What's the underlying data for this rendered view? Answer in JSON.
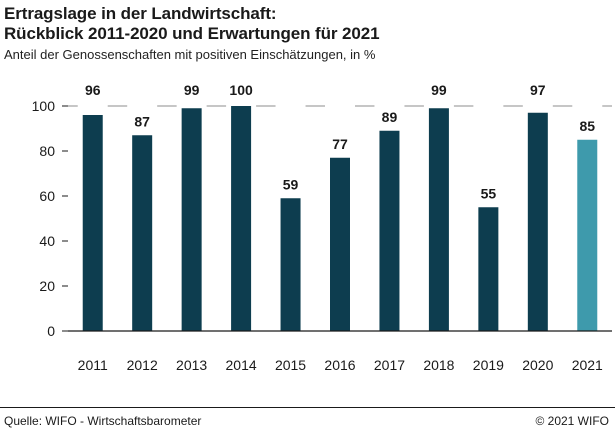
{
  "header": {
    "title_line1": "Ertragslage in der Landwirtschaft:",
    "title_line2": "Rückblick 2011-2020 und Erwartungen für 2021",
    "subtitle": "Anteil der Genossenschaften mit positiven Einschätzungen, in %"
  },
  "footer": {
    "source": "Quelle: WIFO - Wirtschaftsbarometer",
    "copyright": "© 2021 WIFO"
  },
  "colors": {
    "actual": "#0d3d4f",
    "expected": "#3e9aac",
    "axis": "#1a1a1a"
  },
  "chart_data": {
    "type": "bar",
    "categories": [
      "2011",
      "2012",
      "2013",
      "2014",
      "2015",
      "2016",
      "2017",
      "2018",
      "2019",
      "2020",
      "2021"
    ],
    "values": [
      96,
      87,
      99,
      100,
      59,
      77,
      89,
      99,
      55,
      97,
      85
    ],
    "data_labels": [
      "96",
      "87",
      "99",
      "100",
      "59",
      "77",
      "89",
      "99",
      "55",
      "97",
      "85"
    ],
    "highlight_category": "2021",
    "ylim": [
      0,
      100
    ],
    "yticks": [
      0,
      20,
      40,
      60,
      80,
      100
    ],
    "ytick_labels": [
      "0",
      "20",
      "40",
      "60",
      "80",
      "100"
    ],
    "grid": false,
    "legend": "none"
  }
}
